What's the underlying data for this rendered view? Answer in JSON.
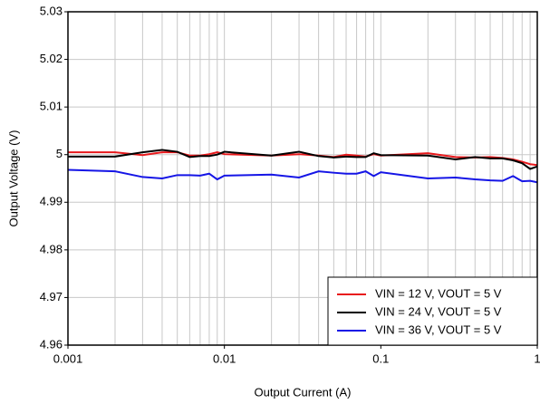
{
  "chart_data": {
    "type": "line",
    "x_label": "Output Current (A)",
    "y_label": "Output Voltage (V)",
    "x_scale": "log",
    "grid": true,
    "minor_grid": true,
    "legend": "lower right",
    "xlim": [
      0.001,
      1
    ],
    "xticks": [
      0.001,
      0.01,
      0.1,
      1
    ],
    "ylim": [
      4.96,
      5.03
    ],
    "yticks": [
      4.96,
      4.97,
      4.98,
      4.99,
      5,
      5.01,
      5.02,
      5.03
    ],
    "x": [
      0.001,
      0.002,
      0.003,
      0.004,
      0.005,
      0.006,
      0.007,
      0.008,
      0.009,
      0.01,
      0.02,
      0.03,
      0.04,
      0.05,
      0.06,
      0.07,
      0.08,
      0.09,
      0.1,
      0.2,
      0.3,
      0.4,
      0.5,
      0.6,
      0.7,
      0.8,
      0.9,
      1
    ],
    "series": [
      {
        "name": "VIN = 12 V, VOUT = 5 V",
        "color": "#e8191c",
        "values": [
          5.0005,
          5.0005,
          4.9999,
          5.0005,
          5.0005,
          4.9998,
          4.9998,
          5.0001,
          5.0005,
          5.0001,
          4.9998,
          5.0001,
          4.9998,
          4.9995,
          5.0,
          4.9998,
          4.9996,
          5.0001,
          4.9998,
          5.0003,
          4.9995,
          4.9994,
          4.9995,
          4.9993,
          4.999,
          4.9985,
          4.998,
          4.9978
        ]
      },
      {
        "name": "VIN = 24 V, VOUT = 5 V",
        "color": "#000000",
        "values": [
          4.9996,
          4.9996,
          5.0005,
          5.001,
          5.0006,
          4.9995,
          4.9997,
          4.9997,
          5.0,
          5.0006,
          4.9998,
          5.0006,
          4.9997,
          4.9994,
          4.9996,
          4.9995,
          4.9995,
          5.0003,
          4.9999,
          4.9998,
          4.999,
          4.9995,
          4.9992,
          4.9992,
          4.9988,
          4.9982,
          4.997,
          4.9975
        ]
      },
      {
        "name": "VIN = 36 V, VOUT = 5 V",
        "color": "#1515e6",
        "values": [
          4.9968,
          4.9965,
          4.9953,
          4.995,
          4.9957,
          4.9957,
          4.9956,
          4.996,
          4.9948,
          4.9956,
          4.9958,
          4.9952,
          4.9965,
          4.9962,
          4.996,
          4.996,
          4.9965,
          4.9955,
          4.9963,
          4.995,
          4.9952,
          4.9948,
          4.9946,
          4.9945,
          4.9955,
          4.9944,
          4.9945,
          4.9942
        ]
      }
    ]
  }
}
